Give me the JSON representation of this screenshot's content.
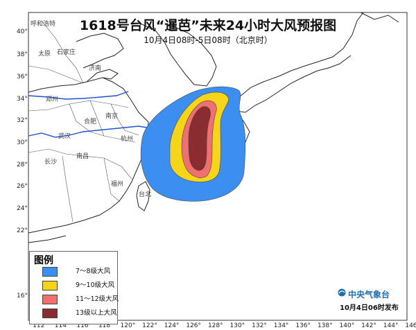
{
  "title": "1618号台风“暹芭”未来24小时大风预报图",
  "subtitle": "10月4日08时-5日08时（北京时）",
  "legend": {
    "title": "图例",
    "items": [
      {
        "label": "7～8级大风",
        "color": "#3c8ff0"
      },
      {
        "label": "9～10级大风",
        "color": "#f6d41a"
      },
      {
        "label": "11～12级大风",
        "color": "#f07070"
      },
      {
        "label": "13级以上大风",
        "color": "#8a2c30"
      }
    ]
  },
  "brand": "中央气象台",
  "publish": "10月4日06时发布",
  "axes": {
    "lon_labels": [
      "112°",
      "114°",
      "116°",
      "118°",
      "120°",
      "122°",
      "124°",
      "126°",
      "128°",
      "130°",
      "132°",
      "134°",
      "136°",
      "138°",
      "140°",
      "142°",
      "144°",
      "146°"
    ],
    "lat_labels": [
      "40°",
      "38°",
      "36°",
      "34°",
      "32°",
      "30°",
      "28°",
      "26°",
      "24°",
      "22°",
      "16°"
    ]
  },
  "cities": [
    "呼和浩特",
    "太原",
    "石家庄",
    "济南",
    "郑州",
    "合肥",
    "南京",
    "武汉",
    "杭州",
    "长沙",
    "南昌",
    "福州",
    "台北"
  ],
  "colors": {
    "sea": "#ffffff",
    "land": "#ffffff",
    "border": "#222222",
    "river": "#1a53d0"
  }
}
